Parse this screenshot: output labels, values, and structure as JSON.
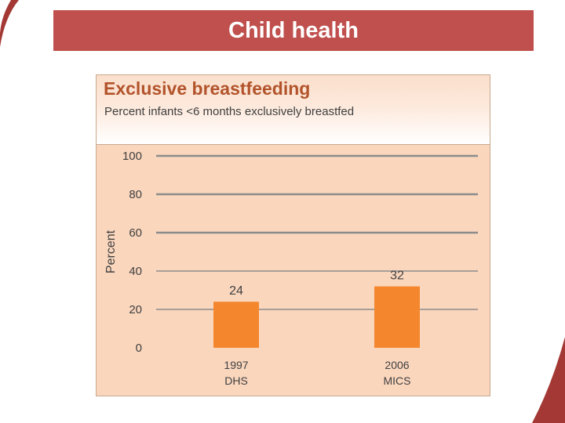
{
  "slide": {
    "title": "Child health"
  },
  "colors": {
    "banner": "#c0504d",
    "accent_dark": "#a33835",
    "bar": "#f4872d",
    "plot_bg": "#fad6bd",
    "grid": "#8c8c8c"
  },
  "chart_data": {
    "type": "bar",
    "title": "Exclusive breastfeeding",
    "subtitle": "Percent infants <6 months exclusively breastfed",
    "ylabel": "Percent",
    "xlabel": "",
    "ylim": [
      0,
      100
    ],
    "yticks": [
      0,
      20,
      40,
      60,
      80,
      100
    ],
    "grid": true,
    "categories": [
      {
        "line1": "1997",
        "line2": "DHS"
      },
      {
        "line1": "2006",
        "line2": "MICS"
      }
    ],
    "values": [
      24,
      32
    ]
  }
}
